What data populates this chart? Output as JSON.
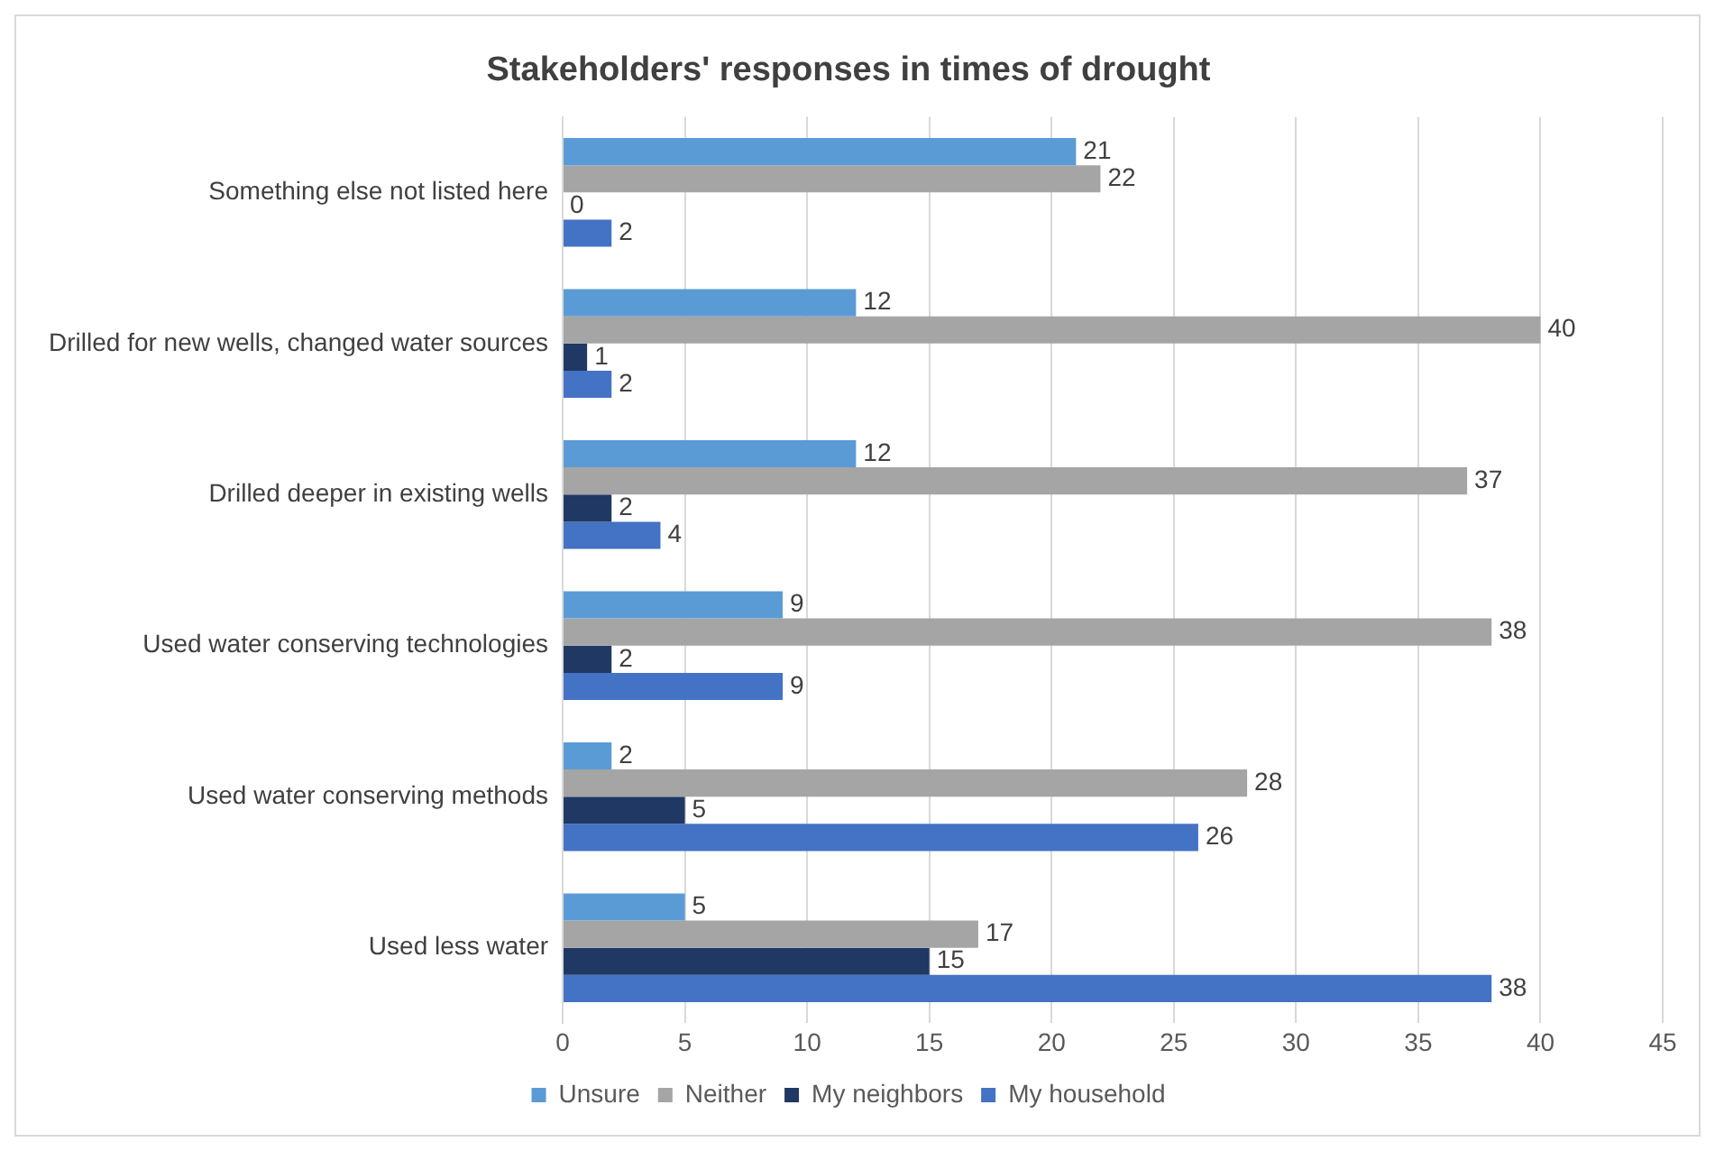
{
  "chart_data": {
    "type": "bar",
    "orientation": "horizontal",
    "title": "Stakeholders' responses in times of drought",
    "categories": [
      "Something else not listed here",
      "Drilled for new wells, changed water sources",
      "Drilled deeper in existing wells",
      "Used water conserving technologies",
      "Used water conserving methods",
      "Used less water"
    ],
    "series": [
      {
        "name": "Unsure",
        "color": "#5b9bd5",
        "values": [
          21,
          12,
          12,
          9,
          2,
          5
        ]
      },
      {
        "name": "Neither",
        "color": "#a5a5a5",
        "values": [
          22,
          40,
          37,
          38,
          28,
          17
        ]
      },
      {
        "name": "My neighbors",
        "color": "#203864",
        "values": [
          0,
          1,
          2,
          2,
          5,
          15
        ]
      },
      {
        "name": "My household",
        "color": "#4472c4",
        "values": [
          2,
          2,
          4,
          9,
          26,
          38
        ]
      }
    ],
    "xlim": [
      0,
      45
    ],
    "xticks": [
      0,
      5,
      10,
      15,
      20,
      25,
      30,
      35,
      40,
      45
    ],
    "grid": "x",
    "data_labels": true,
    "legend": "bottom"
  }
}
